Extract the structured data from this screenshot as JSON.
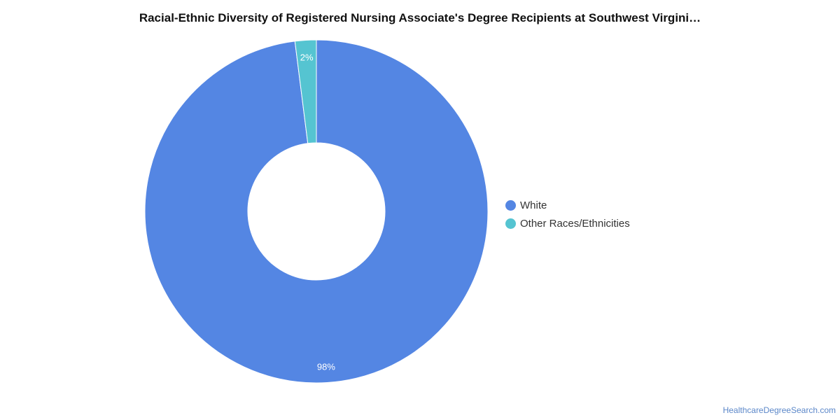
{
  "chart_data": {
    "type": "pie",
    "title": "Racial-Ethnic Diversity of Registered Nursing Associate's Degree Recipients at Southwest Virgini…",
    "donut": true,
    "legend_position": "right",
    "slices": [
      {
        "label": "White",
        "value": 98,
        "data_label": "98%",
        "color": "#5486e3"
      },
      {
        "label": "Other Races/Ethnicities",
        "value": 2,
        "data_label": "2%",
        "color": "#55c4d1"
      }
    ]
  },
  "watermark": "HealthcareDegreeSearch.com"
}
